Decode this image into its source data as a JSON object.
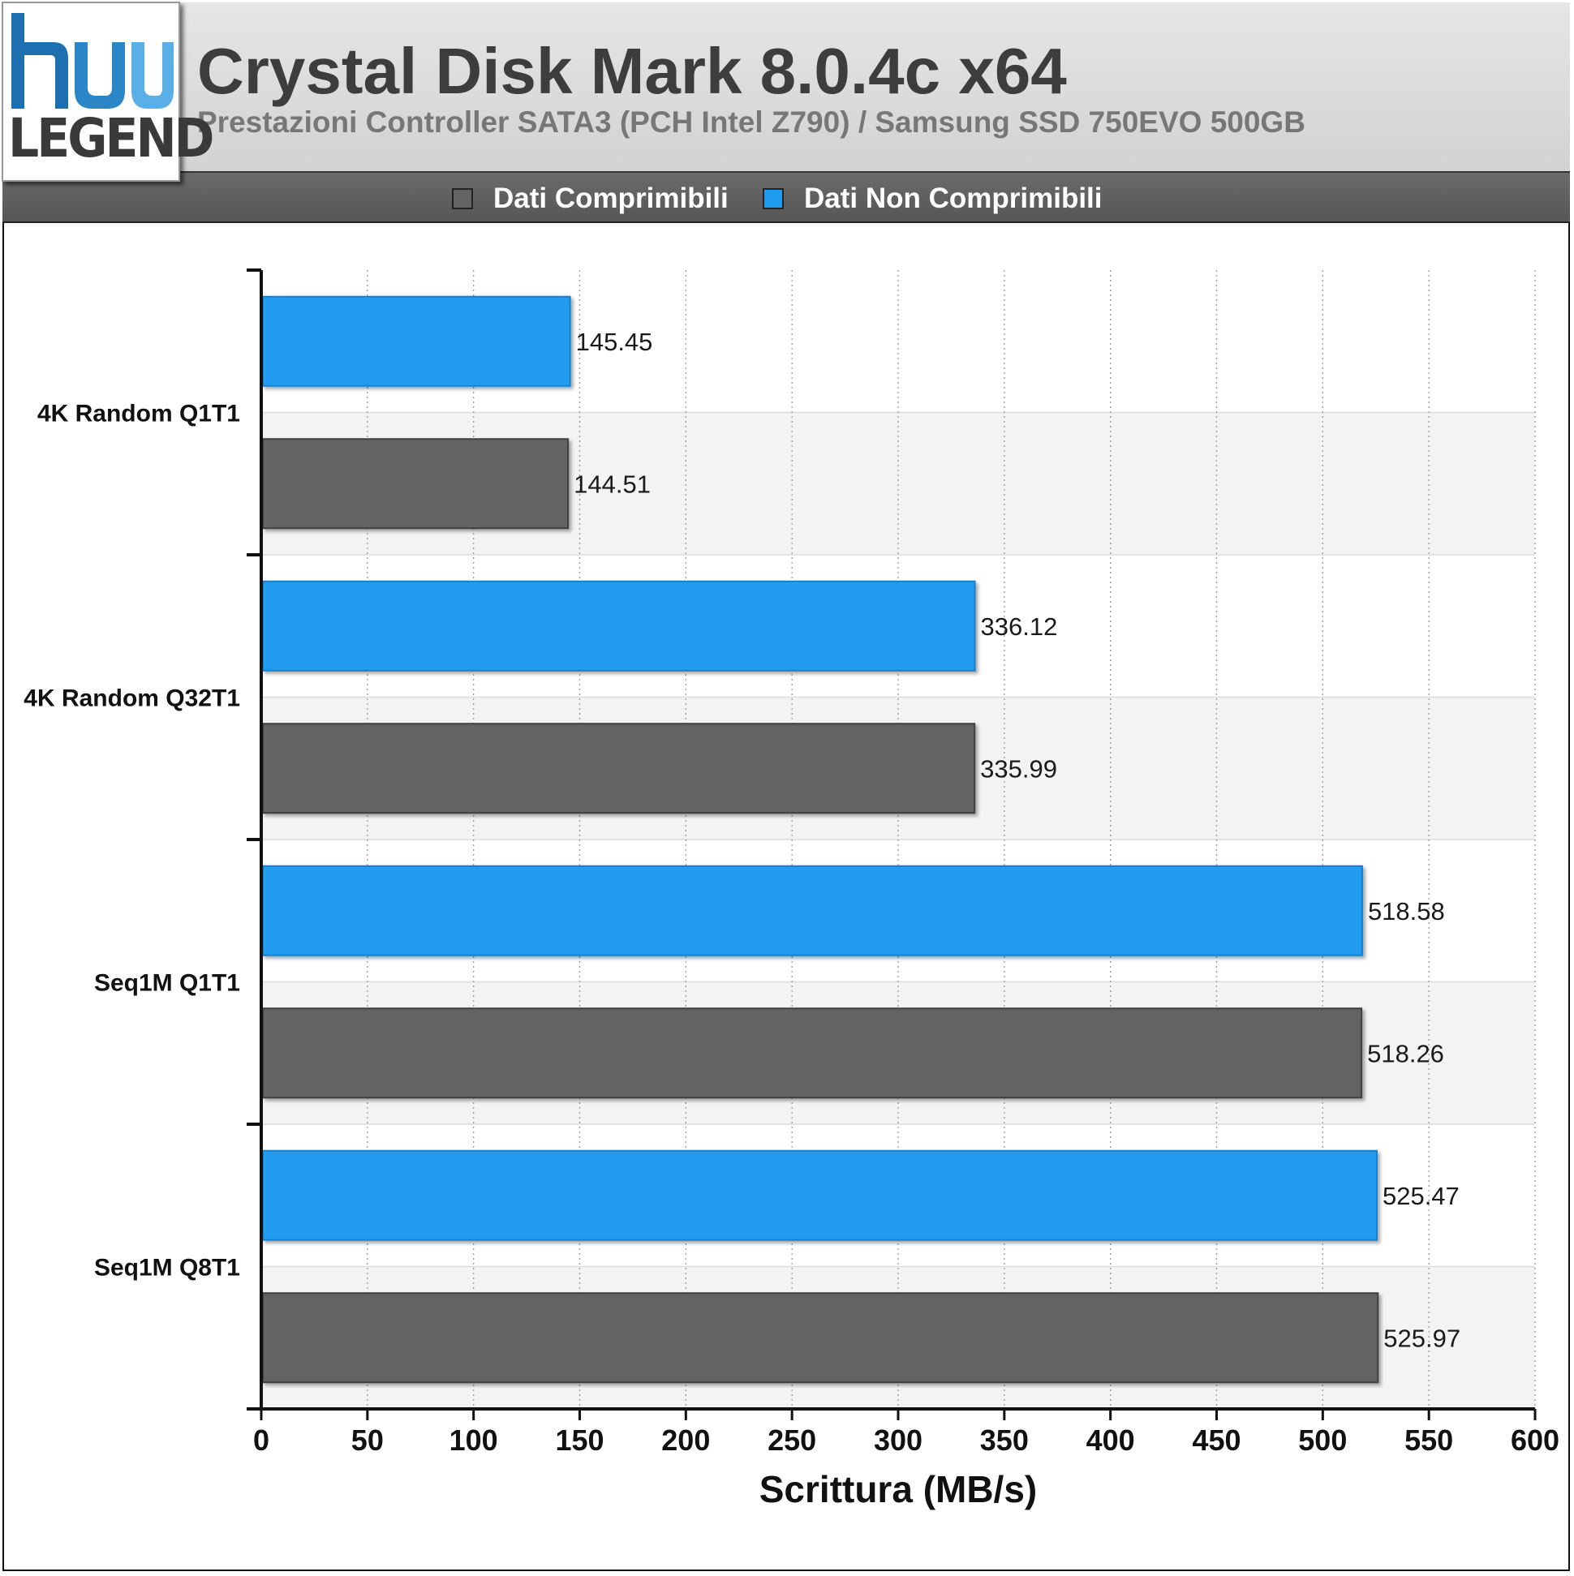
{
  "logo": {
    "text": "LEGEND",
    "mark_colors": [
      "#1d6fb0",
      "#5ab0e6"
    ]
  },
  "header": {
    "title": "Crystal Disk Mark 8.0.4c x64",
    "subtitle": "Prestazioni Controller SATA3 (PCH Intel Z790) / Samsung SSD 750EVO 500GB"
  },
  "legend": [
    {
      "label": "Dati Comprimibili",
      "color": "#636363"
    },
    {
      "label": "Dati Non Comprimibili",
      "color": "#209cee"
    }
  ],
  "chart_data": {
    "type": "bar",
    "orientation": "horizontal",
    "categories": [
      "4K Random Q1T1",
      "4K Random Q32T1",
      "Seq1M Q1T1",
      "Seq1M Q8T1"
    ],
    "series": [
      {
        "name": "Dati Non Comprimibili",
        "color": "#209cee",
        "values": [
          145.45,
          336.12,
          518.58,
          525.47
        ]
      },
      {
        "name": "Dati Comprimibili",
        "color": "#636363",
        "values": [
          144.51,
          335.99,
          518.26,
          525.97
        ]
      }
    ],
    "xlabel": "Scrittura (MB/s)",
    "xlim": [
      0,
      600
    ],
    "xticks": [
      0,
      50,
      100,
      150,
      200,
      250,
      300,
      350,
      400,
      450,
      500,
      550,
      600
    ],
    "grid": true,
    "legend_position": "top"
  }
}
